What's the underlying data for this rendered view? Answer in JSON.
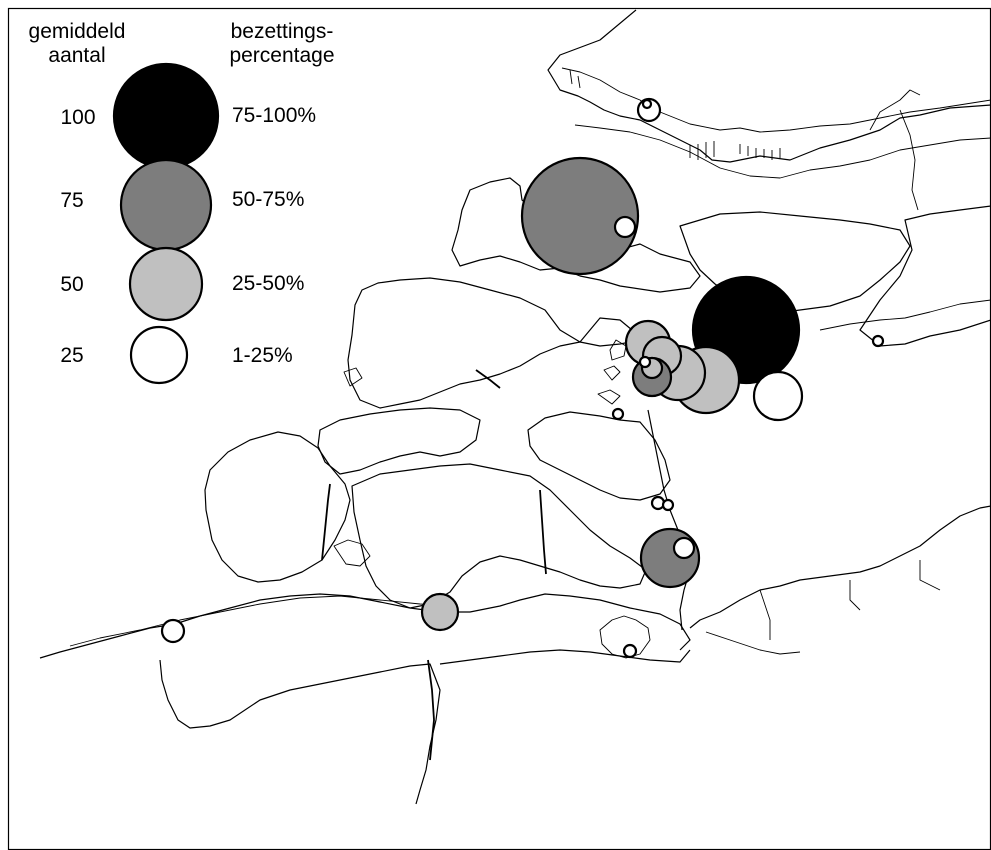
{
  "legend": {
    "size_title_line1": "gemiddeld",
    "size_title_line2": "aantal",
    "color_title_line1": "bezettings-",
    "color_title_line2": "percentage",
    "rows": [
      {
        "size_label": "100",
        "color_label": "75-100%",
        "fill": "#000000"
      },
      {
        "size_label": "75",
        "color_label": "50-75%",
        "fill": "#7d7d7d"
      },
      {
        "size_label": "50",
        "color_label": "25-50%",
        "fill": "#c0c0c0"
      },
      {
        "size_label": "25",
        "color_label": "1-25%",
        "fill": "#ffffff"
      }
    ]
  },
  "colors": {
    "occupancy_75_100": "#000000",
    "occupancy_50_75": "#7d7d7d",
    "occupancy_25_50": "#c0c0c0",
    "occupancy_1_25": "#ffffff",
    "outline": "#000000",
    "background": "#ffffff"
  }
}
